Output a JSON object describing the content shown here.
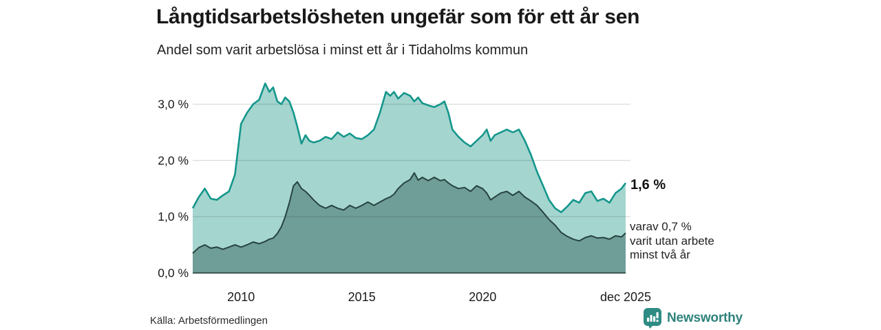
{
  "header": {
    "title": "Långtidsarbetslösheten ungefär som för ett år sen",
    "subtitle": "Andel som varit arbetslösa i minst ett år i Tidaholms kommun"
  },
  "annotations": {
    "latest_value_label": "1,6 %",
    "secondary_line1": "varav 0,7 %",
    "secondary_line2": "varit utan arbete",
    "secondary_line3": "minst två år"
  },
  "footer": {
    "source": "Källa: Arbetsförmedlingen",
    "brand": "Newsworthy"
  },
  "colors": {
    "accent_line": "#14968b",
    "accent_fill": "#a5d5cf",
    "dark_line": "#26433e",
    "dark_fill": "#6f9d98",
    "grid": "rgba(20,35,35,0.15)",
    "baseline": "#3d5954",
    "tick_text": "#1a1a1a",
    "brand": "#2f827c",
    "brand_icon": "#2e8c84"
  },
  "chart_data": {
    "type": "area",
    "title": "Långtidsarbetslösheten ungefär som för ett år sen",
    "subtitle": "Andel som varit arbetslösa i minst ett år i Tidaholms kommun",
    "xlabel": "",
    "ylabel": "%",
    "grid": true,
    "legend": "none",
    "xlim": [
      2008.0,
      2025.92
    ],
    "ylim": [
      0,
      3.5
    ],
    "x": [
      2008.0,
      2008.25,
      2008.5,
      2008.75,
      2009.0,
      2009.25,
      2009.5,
      2009.75,
      2010.0,
      2010.25,
      2010.5,
      2010.75,
      2011.0,
      2011.17,
      2011.33,
      2011.5,
      2011.67,
      2011.83,
      2012.0,
      2012.17,
      2012.33,
      2012.5,
      2012.67,
      2012.83,
      2013.0,
      2013.25,
      2013.5,
      2013.75,
      2014.0,
      2014.25,
      2014.5,
      2014.75,
      2015.0,
      2015.25,
      2015.5,
      2015.75,
      2016.0,
      2016.17,
      2016.33,
      2016.5,
      2016.75,
      2017.0,
      2017.17,
      2017.33,
      2017.5,
      2017.75,
      2018.0,
      2018.25,
      2018.42,
      2018.58,
      2018.75,
      2019.0,
      2019.25,
      2019.5,
      2019.75,
      2020.0,
      2020.17,
      2020.33,
      2020.5,
      2020.75,
      2021.0,
      2021.25,
      2021.5,
      2021.75,
      2022.0,
      2022.25,
      2022.5,
      2022.75,
      2023.0,
      2023.25,
      2023.5,
      2023.75,
      2024.0,
      2024.25,
      2024.5,
      2024.75,
      2025.0,
      2025.25,
      2025.5,
      2025.75,
      2025.92
    ],
    "series": [
      {
        "name": "Arbetslösa minst ett år",
        "values": [
          1.15,
          1.35,
          1.5,
          1.32,
          1.3,
          1.38,
          1.45,
          1.75,
          2.65,
          2.85,
          3.0,
          3.08,
          3.37,
          3.22,
          3.3,
          3.05,
          3.0,
          3.12,
          3.05,
          2.85,
          2.6,
          2.3,
          2.45,
          2.35,
          2.32,
          2.35,
          2.42,
          2.38,
          2.5,
          2.42,
          2.48,
          2.4,
          2.38,
          2.45,
          2.55,
          2.85,
          3.22,
          3.15,
          3.22,
          3.1,
          3.2,
          3.15,
          3.05,
          3.12,
          3.02,
          2.98,
          2.95,
          3.0,
          3.05,
          2.85,
          2.55,
          2.42,
          2.32,
          2.25,
          2.35,
          2.45,
          2.55,
          2.35,
          2.45,
          2.5,
          2.55,
          2.5,
          2.55,
          2.35,
          2.1,
          1.8,
          1.55,
          1.3,
          1.15,
          1.08,
          1.18,
          1.3,
          1.25,
          1.42,
          1.45,
          1.28,
          1.32,
          1.25,
          1.42,
          1.5,
          1.6
        ]
      },
      {
        "name": "Arbetslösa minst två år",
        "values": [
          0.35,
          0.45,
          0.5,
          0.44,
          0.46,
          0.42,
          0.46,
          0.5,
          0.46,
          0.5,
          0.55,
          0.52,
          0.56,
          0.6,
          0.62,
          0.7,
          0.82,
          1.0,
          1.25,
          1.55,
          1.62,
          1.5,
          1.45,
          1.38,
          1.3,
          1.2,
          1.15,
          1.2,
          1.15,
          1.12,
          1.2,
          1.15,
          1.2,
          1.26,
          1.2,
          1.26,
          1.32,
          1.35,
          1.4,
          1.5,
          1.6,
          1.66,
          1.78,
          1.65,
          1.7,
          1.64,
          1.7,
          1.64,
          1.66,
          1.6,
          1.55,
          1.5,
          1.52,
          1.45,
          1.55,
          1.5,
          1.42,
          1.3,
          1.35,
          1.42,
          1.45,
          1.38,
          1.45,
          1.35,
          1.28,
          1.2,
          1.08,
          0.95,
          0.85,
          0.72,
          0.65,
          0.6,
          0.57,
          0.63,
          0.66,
          0.62,
          0.63,
          0.6,
          0.66,
          0.64,
          0.71
        ]
      }
    ],
    "y_ticks": [
      {
        "v": 0,
        "label": "0,0 %"
      },
      {
        "v": 1,
        "label": "1,0 %"
      },
      {
        "v": 2,
        "label": "2,0 %"
      },
      {
        "v": 3,
        "label": "3,0 %"
      }
    ],
    "x_ticks": [
      {
        "v": 2010,
        "label": "2010"
      },
      {
        "v": 2015,
        "label": "2015"
      },
      {
        "v": 2020,
        "label": "2020"
      },
      {
        "v": 2025.92,
        "label": "dec 2025"
      }
    ],
    "latest": {
      "value": 1.6,
      "secondary_value": 0.7
    }
  }
}
